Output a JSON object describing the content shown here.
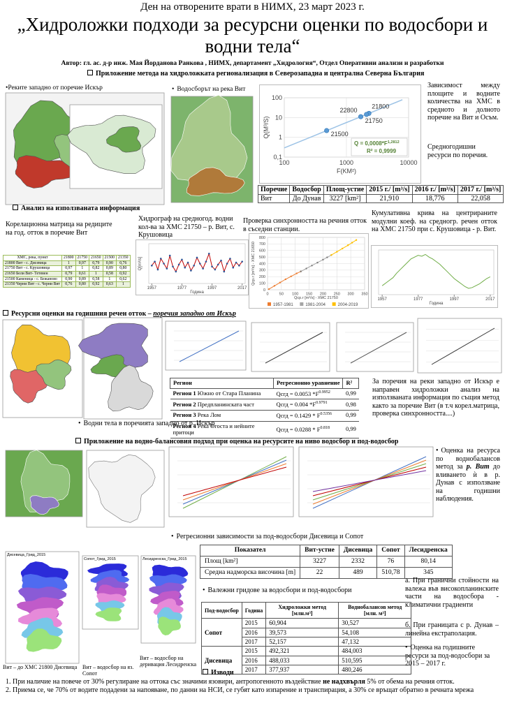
{
  "header": {
    "event": "Ден на отворените врати в НИМХ, 23 март 2023 г.",
    "title": "„Хидроложки подходи за ресурсни оценки по водосбори и водни тела“",
    "author": "Автор: гл. ас. д-р инж. Мая Йорданова Ранкова , НИМХ, департамент „Хидрология“, Отдел Оперативни анализи и разработки"
  },
  "section1": {
    "heading": "Приложение метода на хидроложката регионализация в Северозападна и централна Северна България",
    "map1_caption": "•Реките западно от поречие Искър",
    "map2_caption": "Водосборът на река Вит",
    "text1": "Зависимост между площите и водните количества на ХМС в средното и долното поречие на Вит и Осъм.",
    "text2": "Средногодишни ресурси по поречия.",
    "table": {
      "headers": [
        "Поречие",
        "Водосбор",
        "Площ-устие",
        "2015 г./ [m³/s]",
        "2016 г./ [m³/s]",
        "2017 г./ [m³/s]"
      ],
      "rows": [
        [
          "Вит",
          "До Дунав",
          "3227 [km²]",
          "21,910",
          "18,776",
          "22,058"
        ]
      ]
    }
  },
  "section2": {
    "heading": "Анализ на използваната информация",
    "corr_text": "Корелационна матрица на редиците на год. отток в поречие Вит",
    "corr_table": {
      "headers": [
        "ХМС, река, пункт",
        "21800",
        "21750",
        "21650",
        "21500",
        "21350"
      ],
      "rows": [
        [
          "21800 Вит - с. Дисевица",
          "1",
          "0,97",
          "0,79",
          "0,90",
          "0,76"
        ],
        [
          "21750 Вит - с. Крушовица",
          "0,97",
          "1",
          "0,82",
          "0,89",
          "0,80"
        ],
        [
          "21650 Бели Вит- Тетевен",
          "0,79",
          "0,61",
          "1",
          "0,58",
          "0,92"
        ],
        [
          "21500 Каменица - с. Бежаново",
          "0,90",
          "0,89",
          "0,58",
          "1",
          "0,62"
        ],
        [
          "21350 Черни Вит - с. Черни Вит",
          "0,76",
          "0,80",
          "0,92",
          "0,63",
          "1"
        ]
      ]
    },
    "hydro_caption": "Хидрограф на средногод. водни кол-ва за ХМС 21750 – р. Вит, с. Крушовица",
    "sync_caption": "Проверка синхронността на речния отток в съседни станции.",
    "cumul_caption": "Кумулативна крива на центрираните модулни коеф. на средногр. речен отток на ХМС 21750 при с. Крушовица - р. Вит."
  },
  "section3": {
    "heading_pre": "Ресурсни оценки на годишния речен отток – ",
    "heading_em": "поречия западно от Искър",
    "caption": "Водни тела в поречията западно от р. Искър",
    "text": "За поречия на реки западно от Искър е направен хидроложки анализ на използваната информация по същия метод както за поречие Вит (в т.ч корел.матрица, проверка синхронността....)",
    "table": {
      "headers": [
        "Регион",
        "Регресионно уравнение",
        "R²"
      ],
      "rows": [
        {
          "region": "Регион 1 Южно от Стара Планина",
          "eq": "Qсгд = 0.0053 *F",
          "exp": "0.9952",
          "r2": "0,99"
        },
        {
          "region": "Регион 2 Предпланинската част",
          "eq": "Qсгд = 0.004 *F",
          "exp": "0.9791",
          "r2": "0,98"
        },
        {
          "region": "Регион 3 Река Лом",
          "eq": "Qсгд = 0.1429 * F",
          "exp": "0.5356",
          "r2": "0,99"
        },
        {
          "region": "Регион 4 Река Огоста и нейните притоци",
          "eq": "Qсгд = 0.0288 * F",
          "exp": "0.818",
          "r2": "0,99"
        }
      ]
    }
  },
  "section4": {
    "heading": "Приложение на водно-балансовия подход при оценка на ресурсите на ниво водосбор и под-водосбор",
    "text_pre": "Оценка на ресурса по воднобалансов метод за ",
    "text_em": "р. Вит",
    "text_post": " до вливането ѝ в р. Дунав с използване на годишни наблюдения.",
    "caption": "Регресионни зависимости за под-водосбори Дисевица и Сопот",
    "table": {
      "headers": [
        "Показател",
        "Вит-устие",
        "Дисевица",
        "Сопот",
        "Лесидренска"
      ],
      "rows": [
        [
          "Площ [km²]",
          "3227",
          "2332",
          "76",
          "80,14"
        ],
        [
          "Средна надморска височина [m]",
          "22",
          "489",
          "510,78",
          "345"
        ]
      ]
    }
  },
  "section5": {
    "grids_caption": "Валежни гридове за водосбори и под-водосбори",
    "grid_titles": [
      "Дисевица_Грид_2015",
      "Сопот_Грид_2015",
      "Лесидренска_Грид_2015"
    ],
    "grid_captions": [
      "Вит – до ХМС 21800 Дисевица",
      "Вит – водосбор на яз. Сопот",
      "Вит – водосбор на деривация Лесидренска"
    ],
    "note_a": "а. При гранични стойности на валежа във високопланинските части на водосбора - климатични градиенти",
    "note_b": "б. При границата с р. Дунав – линейна екстраполация.",
    "estimate": "Оценка на годишните ресурси за под-водосбори за 2015 – 2017 г.",
    "table": {
      "headers": [
        "Под-водосбор",
        "Година",
        "Хидроложки метод [млн.м³]",
        "Воднобалансов метод [млн. м³]"
      ],
      "groups": [
        {
          "name": "Сопот",
          "rows": [
            [
              "2015",
              "60,904",
              "30,527"
            ],
            [
              "2016",
              "39,573",
              "54,108"
            ],
            [
              "2017",
              "52,157",
              "47,132"
            ]
          ]
        },
        {
          "name": "Дисевица",
          "rows": [
            [
              "2015",
              "492,321",
              "484,003"
            ],
            [
              "2016",
              "488,033",
              "510,595"
            ],
            [
              "2017",
              "377,937",
              "480,246"
            ]
          ]
        }
      ]
    }
  },
  "conclusions": {
    "heading": "Изводи",
    "item1": {
      "pre": "При наличие на повече от 30% регулиране на оттока със значими язовири, антропогенното въздействие ",
      "bold": "не надхвърля",
      "post": " 5% от обема на речния отток."
    },
    "item2": "Приема се, че 70% от водите подадени за напояване, по данни на НСИ, се губят като изпарение и транспирация, а 30% се връщат обратно в речната мрежа"
  },
  "chart_data": [
    {
      "type": "scatter",
      "log_x": true,
      "log_y": true,
      "xlabel": "F(KM²)",
      "ylabel": "Q(M³/S)",
      "xlim": [
        100,
        10000
      ],
      "ylim": [
        0.1,
        100
      ],
      "xticks": [
        100,
        1000,
        10000
      ],
      "yticks": [
        {
          "value": 0.1,
          "label": "0,1"
        },
        1,
        10,
        100
      ],
      "grid": true,
      "series": [
        {
          "color": "#5b9bd5",
          "x": [
            480,
            1700,
            2300,
            2100
          ],
          "values": [
            2.2,
            11,
            16.2,
            14.4
          ],
          "labels": [
            "21500",
            "22800",
            "21800",
            "21750"
          ]
        }
      ],
      "trendline": {
        "a": 0.0008,
        "b": 1.2812,
        "color": "#9dc3e6",
        "label": "Q = 0,0008*F",
        "exp_label": "1,2812",
        "r2_label": "R² = 0,9999"
      }
    },
    {
      "type": "line",
      "ylabel": "Q[m³/s]",
      "xlabel": "Година",
      "xlim": [
        1955,
        2019
      ],
      "ylim": [
        0,
        40
      ],
      "xticks": [
        1957,
        1977,
        1997,
        2017
      ],
      "grid": false,
      "x": [
        1957,
        1959,
        1961,
        1963,
        1965,
        1967,
        1969,
        1971,
        1973,
        1975,
        1977,
        1979,
        1981,
        1983,
        1985,
        1987,
        1989,
        1991,
        1993,
        1995,
        1997,
        1999,
        2001,
        2003,
        2005,
        2007,
        2009,
        2011,
        2013,
        2015,
        2017
      ],
      "series": [
        {
          "color": "#c00000",
          "marker_color": "#2e5597",
          "values": [
            18,
            22,
            14,
            25,
            20,
            15,
            28,
            17,
            12,
            19,
            24,
            16,
            21,
            13,
            18,
            26,
            20,
            15,
            22,
            30,
            17,
            14,
            19,
            23,
            12,
            20,
            25,
            16,
            21,
            18,
            22
          ]
        }
      ]
    },
    {
      "type": "line",
      "xlabel": "Qср.г [m³/s] - ХМС 21750",
      "ylabel": "Qср.г [m³/s] - ХМС 21650",
      "xlim": [
        0,
        350
      ],
      "ylim": [
        0,
        800
      ],
      "xticks": [
        0,
        50,
        100,
        150,
        200,
        250,
        300,
        350
      ],
      "yticks": [
        0,
        100,
        200,
        300,
        400,
        500,
        600,
        700,
        800
      ],
      "grid": true,
      "legend": "bottom",
      "series": [
        {
          "name": "1957-1981",
          "color": "#ed7d31",
          "marker_color": "#ed7d31",
          "x": [
            5,
            25,
            45,
            65,
            85,
            105,
            120
          ],
          "values": [
            10,
            60,
            110,
            160,
            205,
            250,
            280
          ]
        },
        {
          "name": "1981-2004",
          "color": "#a5a5a5",
          "marker_color": "#7f7f7f",
          "x": [
            120,
            140,
            160,
            180,
            200,
            215,
            230
          ],
          "values": [
            280,
            325,
            370,
            415,
            460,
            495,
            530
          ]
        },
        {
          "name": "2004-2019",
          "color": "#ffc000",
          "marker_color": "#ffc000",
          "x": [
            230,
            250,
            270,
            290,
            305,
            320
          ],
          "values": [
            530,
            580,
            630,
            680,
            720,
            760
          ]
        }
      ]
    },
    {
      "type": "line",
      "xlabel": "Година",
      "xlim": [
        1955,
        2019
      ],
      "ylim": [
        -1,
        4
      ],
      "xticks": [
        1957,
        1977,
        1997,
        2017
      ],
      "grid": false,
      "x": [
        1957,
        1959,
        1961,
        1963,
        1965,
        1967,
        1969,
        1971,
        1973,
        1975,
        1977,
        1979,
        1981,
        1983,
        1985,
        1987,
        1989,
        1991,
        1993,
        1995,
        1997,
        1999,
        2001,
        2003,
        2005,
        2007,
        2009,
        2011,
        2013,
        2015,
        2017
      ],
      "series": [
        {
          "color": "#70ad47",
          "values": [
            0,
            0.3,
            0.6,
            0.9,
            1.4,
            1.8,
            2.2,
            2.6,
            3,
            3.2,
            3.4,
            3.3,
            3.5,
            3.2,
            3,
            2.7,
            2.4,
            2,
            1.6,
            1.2,
            0.8,
            0.5,
            0.2,
            -0.1,
            -0.3,
            -0.2,
            0,
            0.2,
            0.5,
            0.8,
            1
          ]
        }
      ]
    }
  ]
}
